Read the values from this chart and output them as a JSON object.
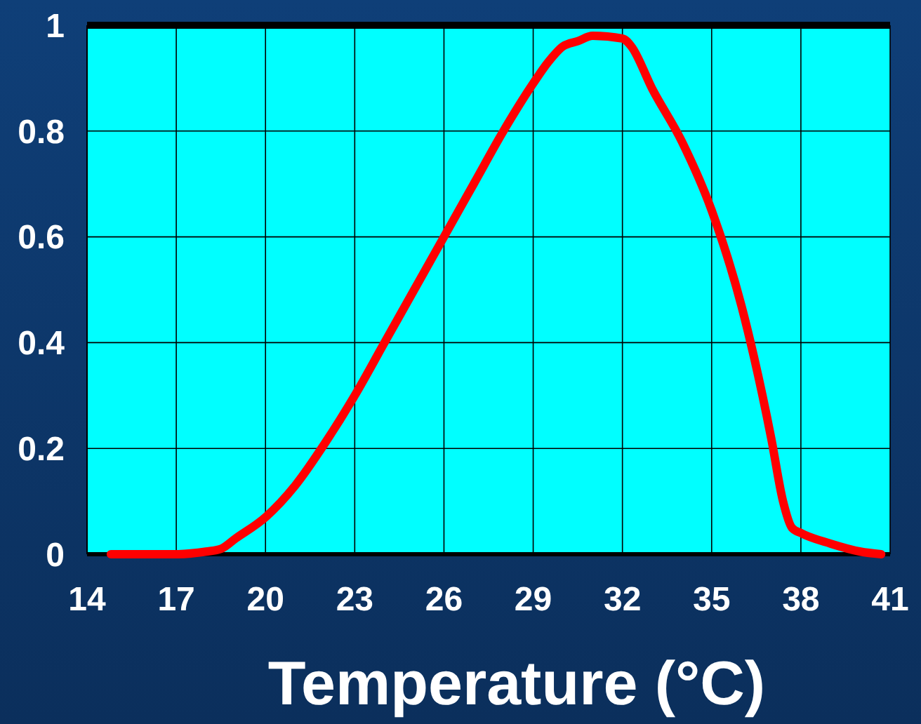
{
  "chart_data": {
    "type": "line",
    "xlabel": "Temperature (°C)",
    "xlim": [
      14,
      41
    ],
    "xticks": [
      14,
      17,
      20,
      23,
      26,
      29,
      32,
      35,
      38,
      41
    ],
    "ylim": [
      0,
      1
    ],
    "yticks": [
      0,
      0.2,
      0.4,
      0.6,
      0.8,
      1
    ],
    "grid": true,
    "marker": "none",
    "line_style": "solid",
    "series": [
      {
        "color": "#ff0000",
        "x": [
          14.8,
          16,
          17,
          18,
          18.5,
          19,
          20,
          21,
          22,
          23,
          24,
          25,
          26,
          27,
          28,
          29,
          29.5,
          30,
          30.5,
          31,
          32,
          32.3,
          33,
          34,
          35,
          36,
          37,
          37.4,
          37.7,
          38,
          39,
          40,
          40.7
        ],
        "values": [
          0,
          0,
          0,
          0.005,
          0.01,
          0.03,
          0.07,
          0.13,
          0.21,
          0.3,
          0.4,
          0.5,
          0.6,
          0.7,
          0.8,
          0.89,
          0.93,
          0.96,
          0.97,
          0.98,
          0.975,
          0.96,
          0.88,
          0.78,
          0.65,
          0.47,
          0.22,
          0.1,
          0.05,
          0.04,
          0.02,
          0.005,
          0
        ]
      }
    ]
  }
}
